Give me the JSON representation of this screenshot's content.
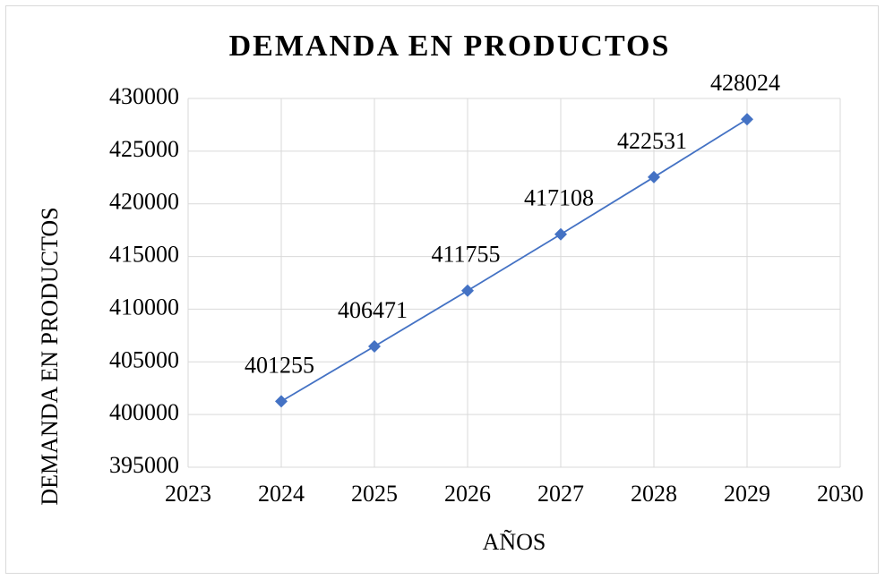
{
  "chart_data": {
    "type": "line",
    "title": "DEMANDA EN PRODUCTOS",
    "x_label": "AÑOS",
    "y_label": "DEMANDA EN PRODUCTOS",
    "x": [
      2024,
      2025,
      2026,
      2027,
      2028,
      2029
    ],
    "series": [
      {
        "name": "DEMANDA EN PRODUCTOS",
        "color": "#4472c4",
        "values": [
          401255,
          406471,
          411755,
          417108,
          422531,
          428024
        ]
      }
    ],
    "xlim": [
      2023,
      2030
    ],
    "xticks": [
      2023,
      2024,
      2025,
      2026,
      2027,
      2028,
      2029,
      2030
    ],
    "ylim": [
      395000,
      430000
    ],
    "yticks": [
      395000,
      400000,
      405000,
      410000,
      415000,
      420000,
      425000,
      430000
    ],
    "grid": true,
    "data_labels": true
  }
}
